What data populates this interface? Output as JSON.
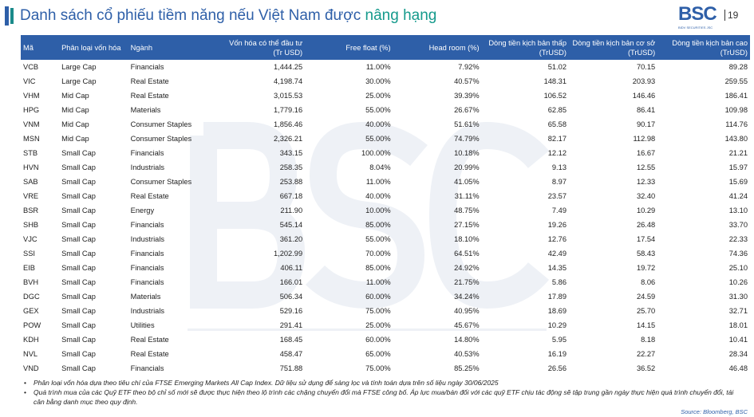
{
  "title": {
    "main": "Danh sách cổ phiếu tiềm năng nếu Việt Nam được ",
    "highlight": "nâng hạng"
  },
  "logo": {
    "text": "BSC",
    "sub": "BIDV SECURITIES JSC"
  },
  "page_number": "19",
  "watermark": {
    "big": "BSC",
    "small": "BIDV SECURITIES JSC"
  },
  "columns": [
    "Mã",
    "Phân loại vốn hóa",
    "Ngành",
    "Vốn hóa có thể đầu tư (Tr USD)",
    "Free float (%)",
    "Head room (%)",
    "Dòng tiền kịch bản thấp (TrUSD)",
    "Dòng tiền kịch bản cơ sở (TrUSD)",
    "Dòng tiền kịch bản cao (TrUSD)"
  ],
  "rows": [
    [
      "VCB",
      "Large Cap",
      "Financials",
      "1,444.25",
      "11.00%",
      "7.92%",
      "51.02",
      "70.15",
      "89.28"
    ],
    [
      "VIC",
      "Large Cap",
      "Real Estate",
      "4,198.74",
      "30.00%",
      "40.57%",
      "148.31",
      "203.93",
      "259.55"
    ],
    [
      "VHM",
      "Mid Cap",
      "Real Estate",
      "3,015.53",
      "25.00%",
      "39.39%",
      "106.52",
      "146.46",
      "186.41"
    ],
    [
      "HPG",
      "Mid Cap",
      "Materials",
      "1,779.16",
      "55.00%",
      "26.67%",
      "62.85",
      "86.41",
      "109.98"
    ],
    [
      "VNM",
      "Mid Cap",
      "Consumer Staples",
      "1,856.46",
      "40.00%",
      "51.61%",
      "65.58",
      "90.17",
      "114.76"
    ],
    [
      "MSN",
      "Mid Cap",
      "Consumer Staples",
      "2,326.21",
      "55.00%",
      "74.79%",
      "82.17",
      "112.98",
      "143.80"
    ],
    [
      "STB",
      "Small Cap",
      "Financials",
      "343.15",
      "100.00%",
      "10.18%",
      "12.12",
      "16.67",
      "21.21"
    ],
    [
      "HVN",
      "Small Cap",
      "Industrials",
      "258.35",
      "8.04%",
      "20.99%",
      "9.13",
      "12.55",
      "15.97"
    ],
    [
      "SAB",
      "Small Cap",
      "Consumer Staples",
      "253.88",
      "11.00%",
      "41.05%",
      "8.97",
      "12.33",
      "15.69"
    ],
    [
      "VRE",
      "Small Cap",
      "Real Estate",
      "667.18",
      "40.00%",
      "31.11%",
      "23.57",
      "32.40",
      "41.24"
    ],
    [
      "BSR",
      "Small Cap",
      "Energy",
      "211.90",
      "10.00%",
      "48.75%",
      "7.49",
      "10.29",
      "13.10"
    ],
    [
      "SHB",
      "Small Cap",
      "Financials",
      "545.14",
      "85.00%",
      "27.15%",
      "19.26",
      "26.48",
      "33.70"
    ],
    [
      "VJC",
      "Small Cap",
      "Industrials",
      "361.20",
      "55.00%",
      "18.10%",
      "12.76",
      "17.54",
      "22.33"
    ],
    [
      "SSI",
      "Small Cap",
      "Financials",
      "1,202.99",
      "70.00%",
      "64.51%",
      "42.49",
      "58.43",
      "74.36"
    ],
    [
      "EIB",
      "Small Cap",
      "Financials",
      "406.11",
      "85.00%",
      "24.92%",
      "14.35",
      "19.72",
      "25.10"
    ],
    [
      "BVH",
      "Small Cap",
      "Financials",
      "166.01",
      "11.00%",
      "21.75%",
      "5.86",
      "8.06",
      "10.26"
    ],
    [
      "DGC",
      "Small Cap",
      "Materials",
      "506.34",
      "60.00%",
      "34.24%",
      "17.89",
      "24.59",
      "31.30"
    ],
    [
      "GEX",
      "Small Cap",
      "Industrials",
      "529.16",
      "75.00%",
      "40.95%",
      "18.69",
      "25.70",
      "32.71"
    ],
    [
      "POW",
      "Small Cap",
      "Utilities",
      "291.41",
      "25.00%",
      "45.67%",
      "10.29",
      "14.15",
      "18.01"
    ],
    [
      "KDH",
      "Small Cap",
      "Real Estate",
      "168.45",
      "60.00%",
      "14.80%",
      "5.95",
      "8.18",
      "10.41"
    ],
    [
      "NVL",
      "Small Cap",
      "Real Estate",
      "458.47",
      "65.00%",
      "40.53%",
      "16.19",
      "22.27",
      "28.34"
    ],
    [
      "VND",
      "Small Cap",
      "Financials",
      "751.88",
      "75.00%",
      "85.25%",
      "26.56",
      "36.52",
      "46.48"
    ]
  ],
  "notes": [
    "Phân loại vốn hóa dựa theo tiêu chí của FTSE Emerging Markets All Cap Index. Dữ liệu sử dụng để sàng lọc và tính toán dựa trên số liệu ngày 30/06/2025",
    "Quá trình mua của các Quỹ ETF theo bộ chỉ số mới sẽ được thực hiện theo lộ trình các chặng chuyển đổi mà FTSE công bố. Áp lực mua/bán đối với các quỹ ETF chịu tác động sẽ tập trung gần ngày thực hiện quá trình chuyển đổi, tái cân bằng danh mục theo quy định."
  ],
  "source": "Source: Bloomberg, BSC"
}
